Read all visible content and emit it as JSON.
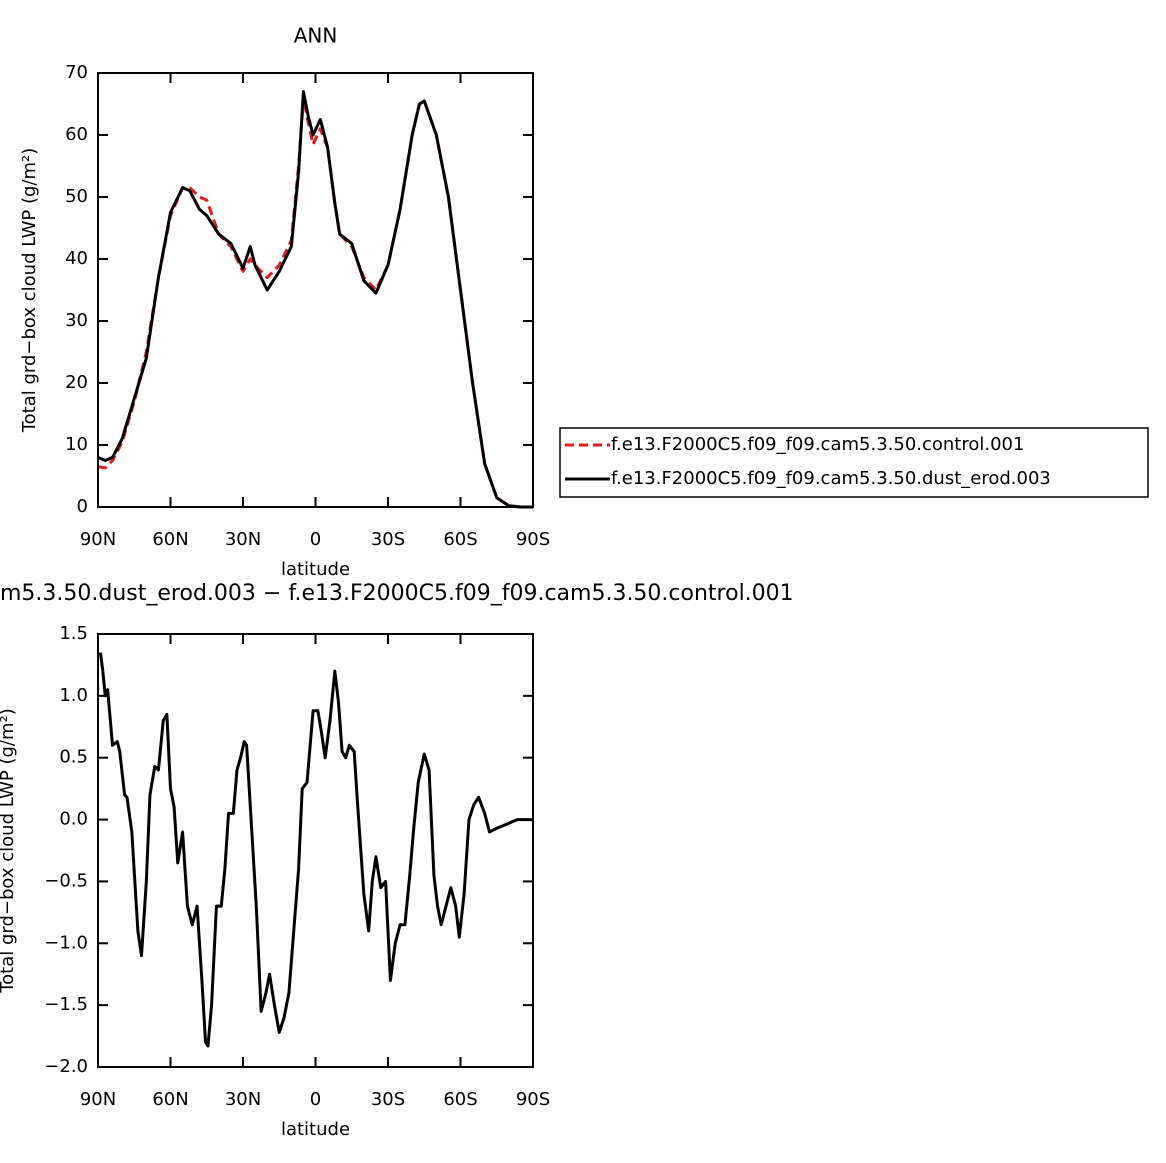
{
  "chart_data": [
    {
      "type": "line",
      "title": "ANN",
      "xlabel": "latitude",
      "ylabel": "Total grd−box cloud LWP (g/m²)",
      "xlim": [
        90,
        -90
      ],
      "xticks": [
        {
          "value": 90,
          "label": "90N"
        },
        {
          "value": 60,
          "label": "60N"
        },
        {
          "value": 30,
          "label": "30N"
        },
        0,
        {
          "value": -30,
          "label": "30S"
        },
        {
          "value": -60,
          "label": "60S"
        },
        {
          "value": -90,
          "label": "90S"
        }
      ],
      "ylim": [
        0,
        70
      ],
      "yticks": [
        0,
        10,
        20,
        30,
        40,
        50,
        60,
        70
      ],
      "legend": "right",
      "x": [
        90,
        87,
        84,
        80,
        75,
        70,
        65,
        60,
        55,
        52,
        48,
        45,
        40,
        35,
        30,
        27,
        25,
        20,
        15,
        10,
        7,
        5,
        3,
        1,
        -2,
        -5,
        -8,
        -10,
        -15,
        -20,
        -25,
        -30,
        -35,
        -40,
        -43,
        -45,
        -50,
        -55,
        -60,
        -65,
        -70,
        -75,
        -80,
        -85,
        -90
      ],
      "series": [
        {
          "name": "f.e13.F2000C5.f09_f09.cam5.3.50.control.001",
          "color": "#e41a1c",
          "style": "dashed",
          "values": [
            6.5,
            6.3,
            7.5,
            10.5,
            17,
            25,
            37,
            47,
            51.5,
            51.5,
            50,
            49.5,
            44,
            42,
            38,
            40,
            39,
            37,
            39,
            43,
            55,
            66,
            62,
            58.5,
            61,
            58,
            49,
            44,
            42,
            37,
            35,
            39,
            48,
            60,
            65,
            65.5,
            60,
            50,
            35,
            20,
            7,
            1.5,
            0.2,
            0,
            0
          ]
        },
        {
          "name": "f.e13.F2000C5.f09_f09.cam5.3.50.dust_erod.003",
          "color": "#000000",
          "style": "solid",
          "values": [
            8,
            7.5,
            8,
            11,
            17.5,
            24,
            37,
            47.5,
            51.5,
            51,
            48,
            47,
            44,
            42.5,
            38.5,
            42,
            39,
            35,
            38,
            42,
            54,
            67,
            63,
            60,
            62.5,
            58,
            49,
            44,
            42.5,
            36.5,
            34.5,
            39,
            48,
            60,
            65,
            65.5,
            60,
            50,
            35,
            20,
            7,
            1.5,
            0.2,
            0,
            0
          ]
        }
      ]
    },
    {
      "type": "line",
      "title": "m5.3.50.dust_erod.003 − f.e13.F2000C5.f09_f09.cam5.3.50.control.001",
      "xlabel": "latitude",
      "ylabel": "Total grd−box cloud LWP (g/m²)",
      "xlim": [
        90,
        -90
      ],
      "xticks": [
        {
          "value": 90,
          "label": "90N"
        },
        {
          "value": 60,
          "label": "60N"
        },
        {
          "value": 30,
          "label": "30N"
        },
        0,
        {
          "value": -30,
          "label": "30S"
        },
        {
          "value": -60,
          "label": "60S"
        },
        {
          "value": -90,
          "label": "90S"
        }
      ],
      "ylim": [
        -2.0,
        1.5
      ],
      "yticks": [
        {
          "value": -2.0,
          "label": "−2.0"
        },
        {
          "value": -1.5,
          "label": "−1.5"
        },
        {
          "value": -1.0,
          "label": "−1.0"
        },
        {
          "value": -0.5,
          "label": "−0.5"
        },
        {
          "value": 0,
          "label": "0.0"
        },
        {
          "value": 0.5,
          "label": "0.5"
        },
        {
          "value": 1.0,
          "label": "1.0"
        },
        {
          "value": 1.5,
          "label": "1.5"
        }
      ],
      "x": [
        89,
        88,
        87,
        86,
        84,
        82,
        81,
        79,
        78,
        76,
        73.5,
        72,
        70,
        68.5,
        66.5,
        65,
        63,
        61.5,
        60,
        58.5,
        57,
        55,
        53,
        51,
        49,
        47,
        45.5,
        44.5,
        43,
        41,
        39,
        37.5,
        36,
        34,
        32.5,
        31,
        29.5,
        28.5,
        26.5,
        24.5,
        22.5,
        20.5,
        19,
        17,
        15,
        13,
        11,
        9,
        7,
        5.5,
        3.5,
        1,
        -1,
        -2.5,
        -4,
        -6,
        -8,
        -9.5,
        -11,
        -12.5,
        -14,
        -16,
        -17.5,
        -20,
        -22,
        -23.5,
        -25,
        -27,
        -29,
        -31,
        -33,
        -35,
        -37,
        -39,
        -40.5,
        -42.5,
        -45,
        -47,
        -49,
        -50.5,
        -52,
        -54,
        -56,
        -58,
        -59.5,
        -61.5,
        -63.5,
        -65.5,
        -67.5,
        -70,
        -72,
        -75,
        -77.5,
        -80,
        -83.5,
        -90
      ],
      "series": [
        {
          "color": "#000000",
          "style": "solid",
          "values": [
            1.35,
            1.2,
            1.0,
            1.05,
            0.6,
            0.63,
            0.55,
            0.2,
            0.18,
            -0.1,
            -0.9,
            -1.1,
            -0.5,
            0.2,
            0.43,
            0.4,
            0.8,
            0.85,
            0.25,
            0.1,
            -0.35,
            -0.1,
            -0.7,
            -0.85,
            -0.7,
            -1.3,
            -1.8,
            -1.83,
            -1.5,
            -0.7,
            -0.7,
            -0.4,
            0.05,
            0.05,
            0.4,
            0.5,
            0.63,
            0.6,
            -0.05,
            -0.7,
            -1.55,
            -1.4,
            -1.25,
            -1.5,
            -1.72,
            -1.6,
            -1.4,
            -0.9,
            -0.4,
            0.25,
            0.3,
            0.88,
            0.88,
            0.7,
            0.5,
            0.8,
            1.2,
            0.95,
            0.55,
            0.5,
            0.6,
            0.55,
            0.1,
            -0.6,
            -0.9,
            -0.5,
            -0.3,
            -0.55,
            -0.5,
            -1.3,
            -1.0,
            -0.85,
            -0.85,
            -0.45,
            -0.1,
            0.3,
            0.53,
            0.4,
            -0.45,
            -0.7,
            -0.85,
            -0.7,
            -0.55,
            -0.7,
            -0.95,
            -0.6,
            0.0,
            0.12,
            0.18,
            0.05,
            -0.1,
            -0.07,
            -0.05,
            -0.03,
            0.0,
            0.0
          ]
        }
      ]
    }
  ]
}
